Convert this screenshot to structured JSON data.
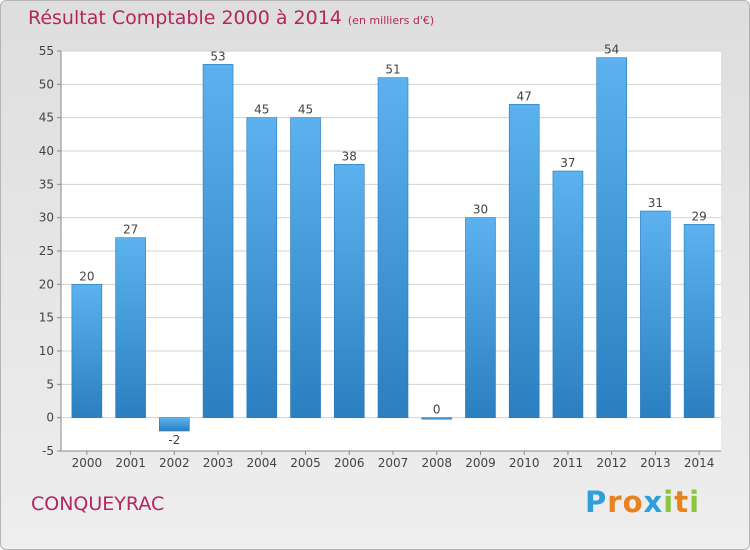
{
  "chart_data": {
    "type": "bar",
    "title": "Résultat Comptable 2000 à 2014",
    "subtitle": "(en milliers d'€)",
    "categories": [
      "2000",
      "2001",
      "2002",
      "2003",
      "2004",
      "2005",
      "2006",
      "2007",
      "2008",
      "2009",
      "2010",
      "2011",
      "2012",
      "2013",
      "2014"
    ],
    "values": [
      20,
      27,
      -2,
      53,
      45,
      45,
      38,
      51,
      0,
      30,
      47,
      37,
      54,
      31,
      29
    ],
    "ylim": [
      -5,
      55
    ],
    "yticks": [
      -5,
      0,
      5,
      10,
      15,
      20,
      25,
      30,
      35,
      40,
      45,
      50,
      55
    ],
    "xlabel": "",
    "ylabel": "",
    "grid": true,
    "bar_color": "#4fa6e6"
  },
  "commune": "CONQUEYRAC",
  "logo": {
    "letters": [
      "P",
      "r",
      "o",
      "x",
      "i",
      "t",
      "i"
    ],
    "colors": [
      "#2e9fd8",
      "#e8821c",
      "#e8821c",
      "#2e9fd8",
      "#8cc63f",
      "#e8821c",
      "#8cc63f"
    ]
  }
}
